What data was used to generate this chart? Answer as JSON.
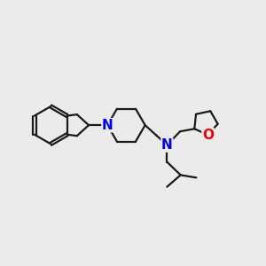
{
  "background_color": "#ebebeb",
  "bond_color": "#1a1a1a",
  "N_color": "#0000ee",
  "O_color": "#ee0000",
  "line_width": 1.6,
  "font_size": 11,
  "figsize": [
    3.0,
    3.0
  ],
  "dpi": 100,
  "xlim": [
    0,
    10
  ],
  "ylim": [
    0,
    10
  ]
}
